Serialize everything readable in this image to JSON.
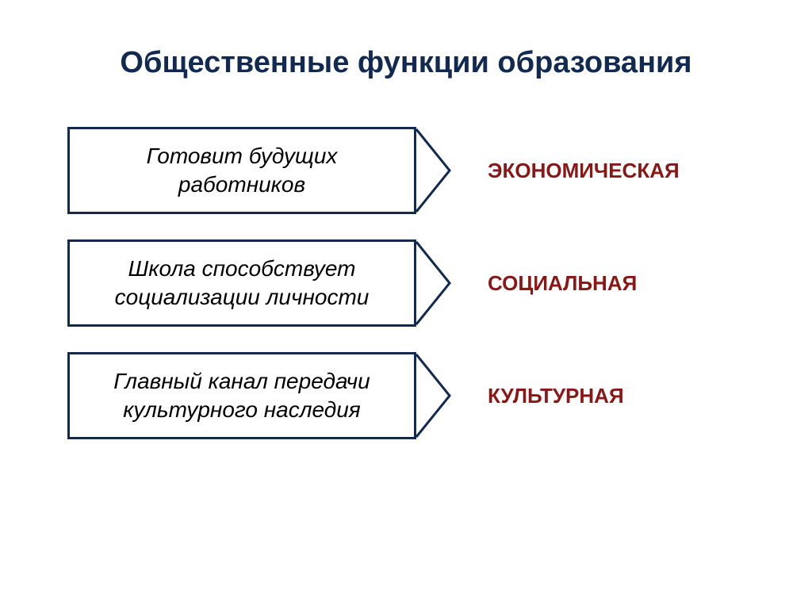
{
  "diagram": {
    "type": "flowchart",
    "title": {
      "text": "Общественные функции образования",
      "color": "#122a52",
      "fontsize": 38
    },
    "background_color": "#ffffff",
    "box_border_color": "#122a52",
    "box_border_width": 3,
    "arrow_stroke_color": "#122a52",
    "arrow_stroke_width": 3,
    "label_color": "#8b1616",
    "label_fontsize": 26,
    "box_text_color": "#000000",
    "box_fontsize": 28,
    "box_font_style": "italic",
    "rows": [
      {
        "box_text": "Готовит будущих работников",
        "label": "ЭКОНОМИЧЕСКАЯ"
      },
      {
        "box_text": "Школа способствует социализации личности",
        "label": "СОЦИАЛЬНАЯ"
      },
      {
        "box_text": "Главный канал передачи культурного наследия",
        "label": "КУЛЬТУРНАЯ"
      }
    ]
  }
}
